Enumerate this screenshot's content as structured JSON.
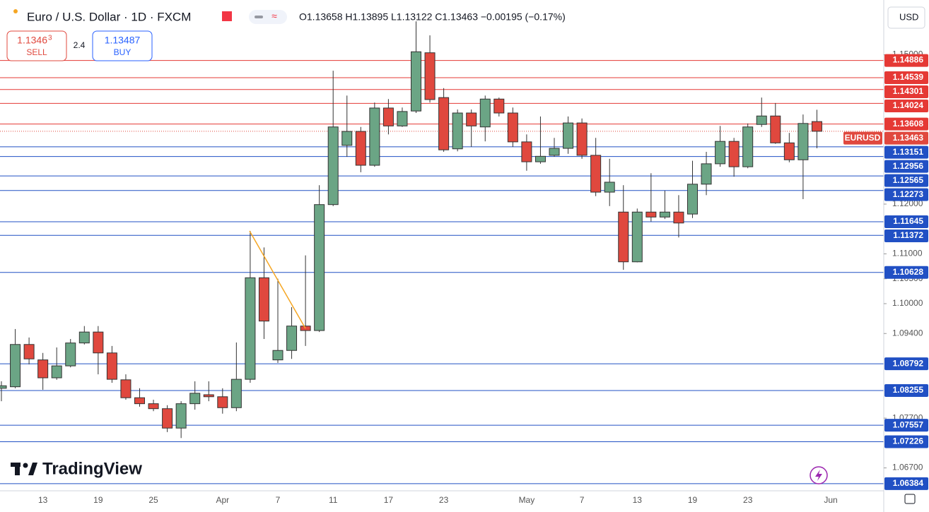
{
  "header": {
    "title": "Euro / U.S. Dollar · 1D · FXCM",
    "ohlc": "O1.13658 H1.13895 L1.13122 C1.13463 −0.00195 (−0.17%)"
  },
  "trade": {
    "sell": {
      "price": "1.1346",
      "price_superscript": "3",
      "label": "SELL"
    },
    "spread": "2.4",
    "buy": {
      "price": "1.13487",
      "label": "BUY"
    }
  },
  "currency": "USD",
  "watermark": "TradingView",
  "chart_data": {
    "type": "candlestick",
    "symbol": "EURUSD",
    "categories": [
      null,
      null,
      null,
      "13",
      null,
      null,
      null,
      "19",
      null,
      null,
      null,
      "25",
      null,
      null,
      null,
      null,
      "Apr",
      null,
      null,
      null,
      "7",
      null,
      null,
      null,
      "11",
      null,
      null,
      null,
      "17",
      null,
      null,
      null,
      "23",
      null,
      null,
      null,
      null,
      null,
      "May",
      null,
      null,
      null,
      "7",
      null,
      null,
      null,
      "13",
      null,
      null,
      null,
      "19",
      null,
      null,
      null,
      "23",
      null,
      null,
      null,
      null,
      null,
      "Jun"
    ],
    "open": [
      1.083,
      1.0833,
      1.0918,
      1.0887,
      1.0851,
      1.0875,
      1.0921,
      1.0943,
      1.0901,
      1.0847,
      1.0811,
      1.0799,
      1.0789,
      1.075,
      1.0799,
      1.0817,
      1.0813,
      1.0791,
      1.0848,
      1.1052,
      1.0887,
      1.0906,
      1.0955,
      1.0946,
      1.1199,
      1.1318,
      1.1346,
      1.1278,
      1.1393,
      1.1357,
      1.1387,
      1.1504,
      1.1414,
      1.1311,
      1.1383,
      1.1355,
      1.1411,
      1.1383,
      1.1325,
      1.1285,
      1.1298,
      1.1312,
      1.1363,
      1.1298,
      1.1224,
      1.1184,
      1.1084,
      1.1184,
      1.1174,
      1.1184,
      1.118,
      1.124,
      1.1281,
      1.1326,
      1.1275,
      1.136,
      1.1377,
      1.1323,
      1.1289,
      1.13658,
      null
    ],
    "high": [
      1.0844,
      1.0949,
      1.0932,
      1.0901,
      1.0912,
      1.0929,
      1.0955,
      1.0955,
      1.0915,
      1.0858,
      1.083,
      1.0807,
      1.0796,
      1.0804,
      1.0844,
      1.0844,
      1.083,
      1.0922,
      1.1146,
      1.1113,
      1.105,
      1.0993,
      1.1097,
      1.1238,
      1.1468,
      1.1418,
      1.1355,
      1.1404,
      1.1411,
      1.1394,
      1.1567,
      1.1539,
      1.1433,
      1.139,
      1.139,
      1.1418,
      1.1414,
      1.1394,
      1.134,
      1.1376,
      1.1333,
      1.1376,
      1.1372,
      1.1333,
      1.1291,
      1.1238,
      1.1191,
      1.1262,
      1.1227,
      1.1218,
      1.1287,
      1.1305,
      1.1357,
      1.1333,
      1.1362,
      1.1414,
      1.1403,
      1.1343,
      1.138,
      1.13895,
      null
    ],
    "low": [
      1.0804,
      1.083,
      1.0878,
      1.0827,
      1.0847,
      1.0872,
      1.0918,
      1.0858,
      1.0841,
      1.0807,
      1.0793,
      1.0784,
      1.0742,
      1.073,
      1.0787,
      1.0804,
      1.0779,
      1.0784,
      1.0841,
      1.0929,
      1.0881,
      1.0889,
      1.0915,
      1.0943,
      1.1196,
      1.1295,
      1.1264,
      1.1275,
      1.134,
      1.1355,
      1.1383,
      1.1404,
      1.1305,
      1.1306,
      1.1315,
      1.1326,
      1.1376,
      1.1315,
      1.1267,
      1.1281,
      1.1295,
      1.1301,
      1.1291,
      1.1216,
      1.1196,
      1.1068,
      1.1083,
      1.1165,
      1.117,
      1.1133,
      1.1172,
      1.1218,
      1.1275,
      1.1255,
      1.1272,
      1.1355,
      1.1321,
      1.1284,
      1.121,
      1.13122,
      null
    ],
    "close": [
      1.0835,
      1.0918,
      1.0889,
      1.0851,
      1.0875,
      1.0921,
      1.0943,
      1.0901,
      1.0848,
      1.0811,
      1.0799,
      1.0789,
      1.075,
      1.0799,
      1.082,
      1.0813,
      1.0791,
      1.0848,
      1.1052,
      1.0965,
      1.0906,
      1.0955,
      1.0946,
      1.1199,
      1.1355,
      1.1346,
      1.1278,
      1.1393,
      1.1357,
      1.1386,
      1.1506,
      1.141,
      1.1309,
      1.1383,
      1.1357,
      1.1411,
      1.1383,
      1.1325,
      1.1285,
      1.1296,
      1.1312,
      1.1363,
      1.1298,
      1.1224,
      1.1244,
      1.1084,
      1.1184,
      1.1174,
      1.1184,
      1.1162,
      1.124,
      1.1281,
      1.1326,
      1.1275,
      1.1355,
      1.1377,
      1.1323,
      1.1289,
      1.1362,
      1.13463,
      null
    ],
    "up_color": "#6ba585",
    "down_color": "#e0483e",
    "last_price": 1.13463,
    "last_price_color": "#e0483e",
    "resistance_levels": [
      1.14886,
      1.14539,
      1.14301,
      1.14024,
      1.13608
    ],
    "resistance_color": "#e53935",
    "support_levels": [
      1.13151,
      1.12956,
      1.12565,
      1.12273,
      1.11645,
      1.11372,
      1.10628,
      1.08792,
      1.08255,
      1.07557,
      1.07226,
      1.06384
    ],
    "support_color": "#2150c4",
    "ylim": [
      1.0624,
      1.161
    ],
    "yticks": [
      {
        "value": 1.15,
        "label": "1.15000"
      },
      {
        "value": 1.12,
        "label": "1.12000"
      },
      {
        "value": 1.11,
        "label": "1.11000"
      },
      {
        "value": 1.105,
        "label": "1.10500"
      },
      {
        "value": 1.1,
        "label": "1.10000"
      },
      {
        "value": 1.094,
        "label": "1.09400"
      },
      {
        "value": 1.077,
        "label": "1.07700"
      },
      {
        "value": 1.067,
        "label": "1.06700"
      }
    ],
    "grid": false
  }
}
